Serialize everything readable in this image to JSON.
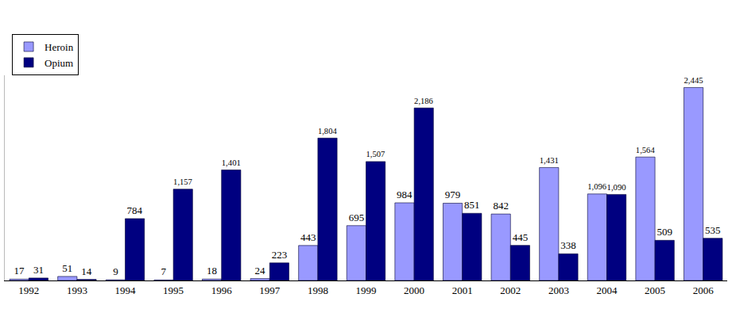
{
  "chart_data": {
    "type": "bar",
    "categories": [
      "1992",
      "1993",
      "1994",
      "1995",
      "1996",
      "1997",
      "1998",
      "1999",
      "2000",
      "2001",
      "2002",
      "2003",
      "2004",
      "2005",
      "2006"
    ],
    "series": [
      {
        "name": "Heroin",
        "color": "#9999ff",
        "values": [
          17,
          51,
          9,
          7,
          18,
          24,
          443,
          695,
          984,
          979,
          842,
          1431,
          1096,
          1564,
          2445
        ],
        "value_labels": [
          "17",
          "51",
          "9",
          "7",
          "18",
          "24",
          "443",
          "695",
          "984",
          "979",
          "842",
          "1,431",
          "1,096",
          "1,564",
          "2,445"
        ]
      },
      {
        "name": "Opium",
        "color": "#000080",
        "values": [
          31,
          14,
          784,
          1157,
          1401,
          223,
          1804,
          1507,
          2186,
          851,
          445,
          338,
          1090,
          509,
          535
        ],
        "value_labels": [
          "31",
          "14",
          "784",
          "1,157",
          "1,401",
          "223",
          "1,804",
          "1,507",
          "2,186",
          "851",
          "445",
          "338",
          "1,090",
          "509",
          "535"
        ]
      }
    ],
    "ylim": [
      0,
      2600
    ],
    "data_labels": true,
    "tick_labels": "x",
    "grid": false,
    "legend": "top-left"
  }
}
